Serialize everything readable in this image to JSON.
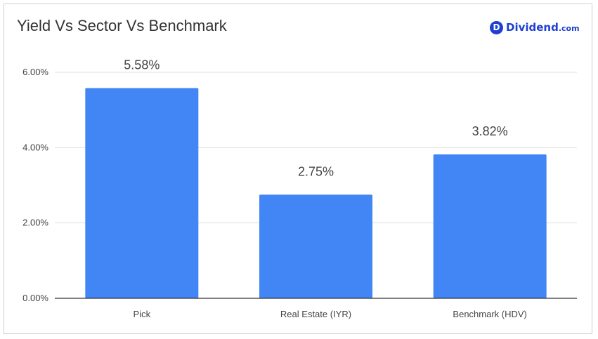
{
  "title": "Yield Vs Sector Vs Benchmark",
  "logo": {
    "mark": "D",
    "name": "Dividend",
    "tld": ".com"
  },
  "colors": {
    "bar": "#4285f4",
    "grid": "#e0e0e0",
    "axis": "#333333",
    "logo": "#1f3fd1"
  },
  "chart_data": {
    "type": "bar",
    "title": "Yield Vs Sector Vs Benchmark",
    "categories": [
      "Pick",
      "Real Estate (IYR)",
      "Benchmark (HDV)"
    ],
    "values": [
      5.58,
      2.75,
      3.82
    ],
    "data_labels": [
      "5.58%",
      "2.75%",
      "3.82%"
    ],
    "ylim": [
      0,
      6
    ],
    "yticks": [
      0,
      2,
      4,
      6
    ],
    "ytick_labels": [
      "0.00%",
      "2.00%",
      "4.00%",
      "6.00%"
    ],
    "grid": true,
    "legend": "none"
  }
}
